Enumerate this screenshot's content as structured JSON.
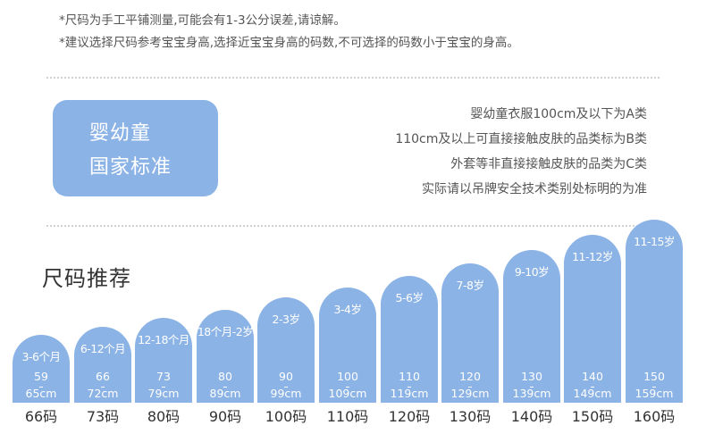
{
  "notes": [
    "*尺码为手工平铺测量,可能会有1-3公分误差,请谅解。",
    "*建议选择尺码参考宝宝身高,选择近宝宝身高的码数,不可选择的码数小于宝宝的身高。"
  ],
  "standard": {
    "box_line1": "婴幼童",
    "box_line2": "国家标准",
    "rules": [
      "婴幼童衣服100cm及以下为A类",
      "110cm及以上可直接接触皮肤的品类标为B类",
      "外套等非直接接触皮肤的品类为C类",
      "实际请以吊牌安全技术类别处标明的为准"
    ]
  },
  "section_title": "尺码推荐",
  "sizes": [
    {
      "age": "3-6个月",
      "h_from": "59",
      "h_to": "65cm",
      "size": "66码",
      "height_frac": 0.21
    },
    {
      "age": "6-12个月",
      "h_from": "66",
      "h_to": "72cm",
      "size": "73码",
      "height_frac": 0.26
    },
    {
      "age": "12-18个月",
      "h_from": "73",
      "h_to": "79cm",
      "size": "80码",
      "height_frac": 0.31
    },
    {
      "age": "18个月-2岁",
      "h_from": "80",
      "h_to": "89cm",
      "size": "90码",
      "height_frac": 0.36
    },
    {
      "age": "2-3岁",
      "h_from": "90",
      "h_to": "99cm",
      "size": "100码",
      "height_frac": 0.43
    },
    {
      "age": "3-4岁",
      "h_from": "100",
      "h_to": "109cm",
      "size": "110码",
      "height_frac": 0.49
    },
    {
      "age": "5-6岁",
      "h_from": "110",
      "h_to": "119cm",
      "size": "120码",
      "height_frac": 0.56
    },
    {
      "age": "7-8岁",
      "h_from": "120",
      "h_to": "129cm",
      "size": "130码",
      "height_frac": 0.63
    },
    {
      "age": "9-10岁",
      "h_from": "130",
      "h_to": "139cm",
      "size": "140码",
      "height_frac": 0.71
    },
    {
      "age": "11-12岁",
      "h_from": "140",
      "h_to": "149cm",
      "size": "150码",
      "height_frac": 0.8
    },
    {
      "age": "11-15岁",
      "h_from": "150",
      "h_to": "159cm",
      "size": "160码",
      "height_frac": 0.89
    }
  ],
  "colors": {
    "accent": "#8cb3e6",
    "text": "#555555"
  }
}
